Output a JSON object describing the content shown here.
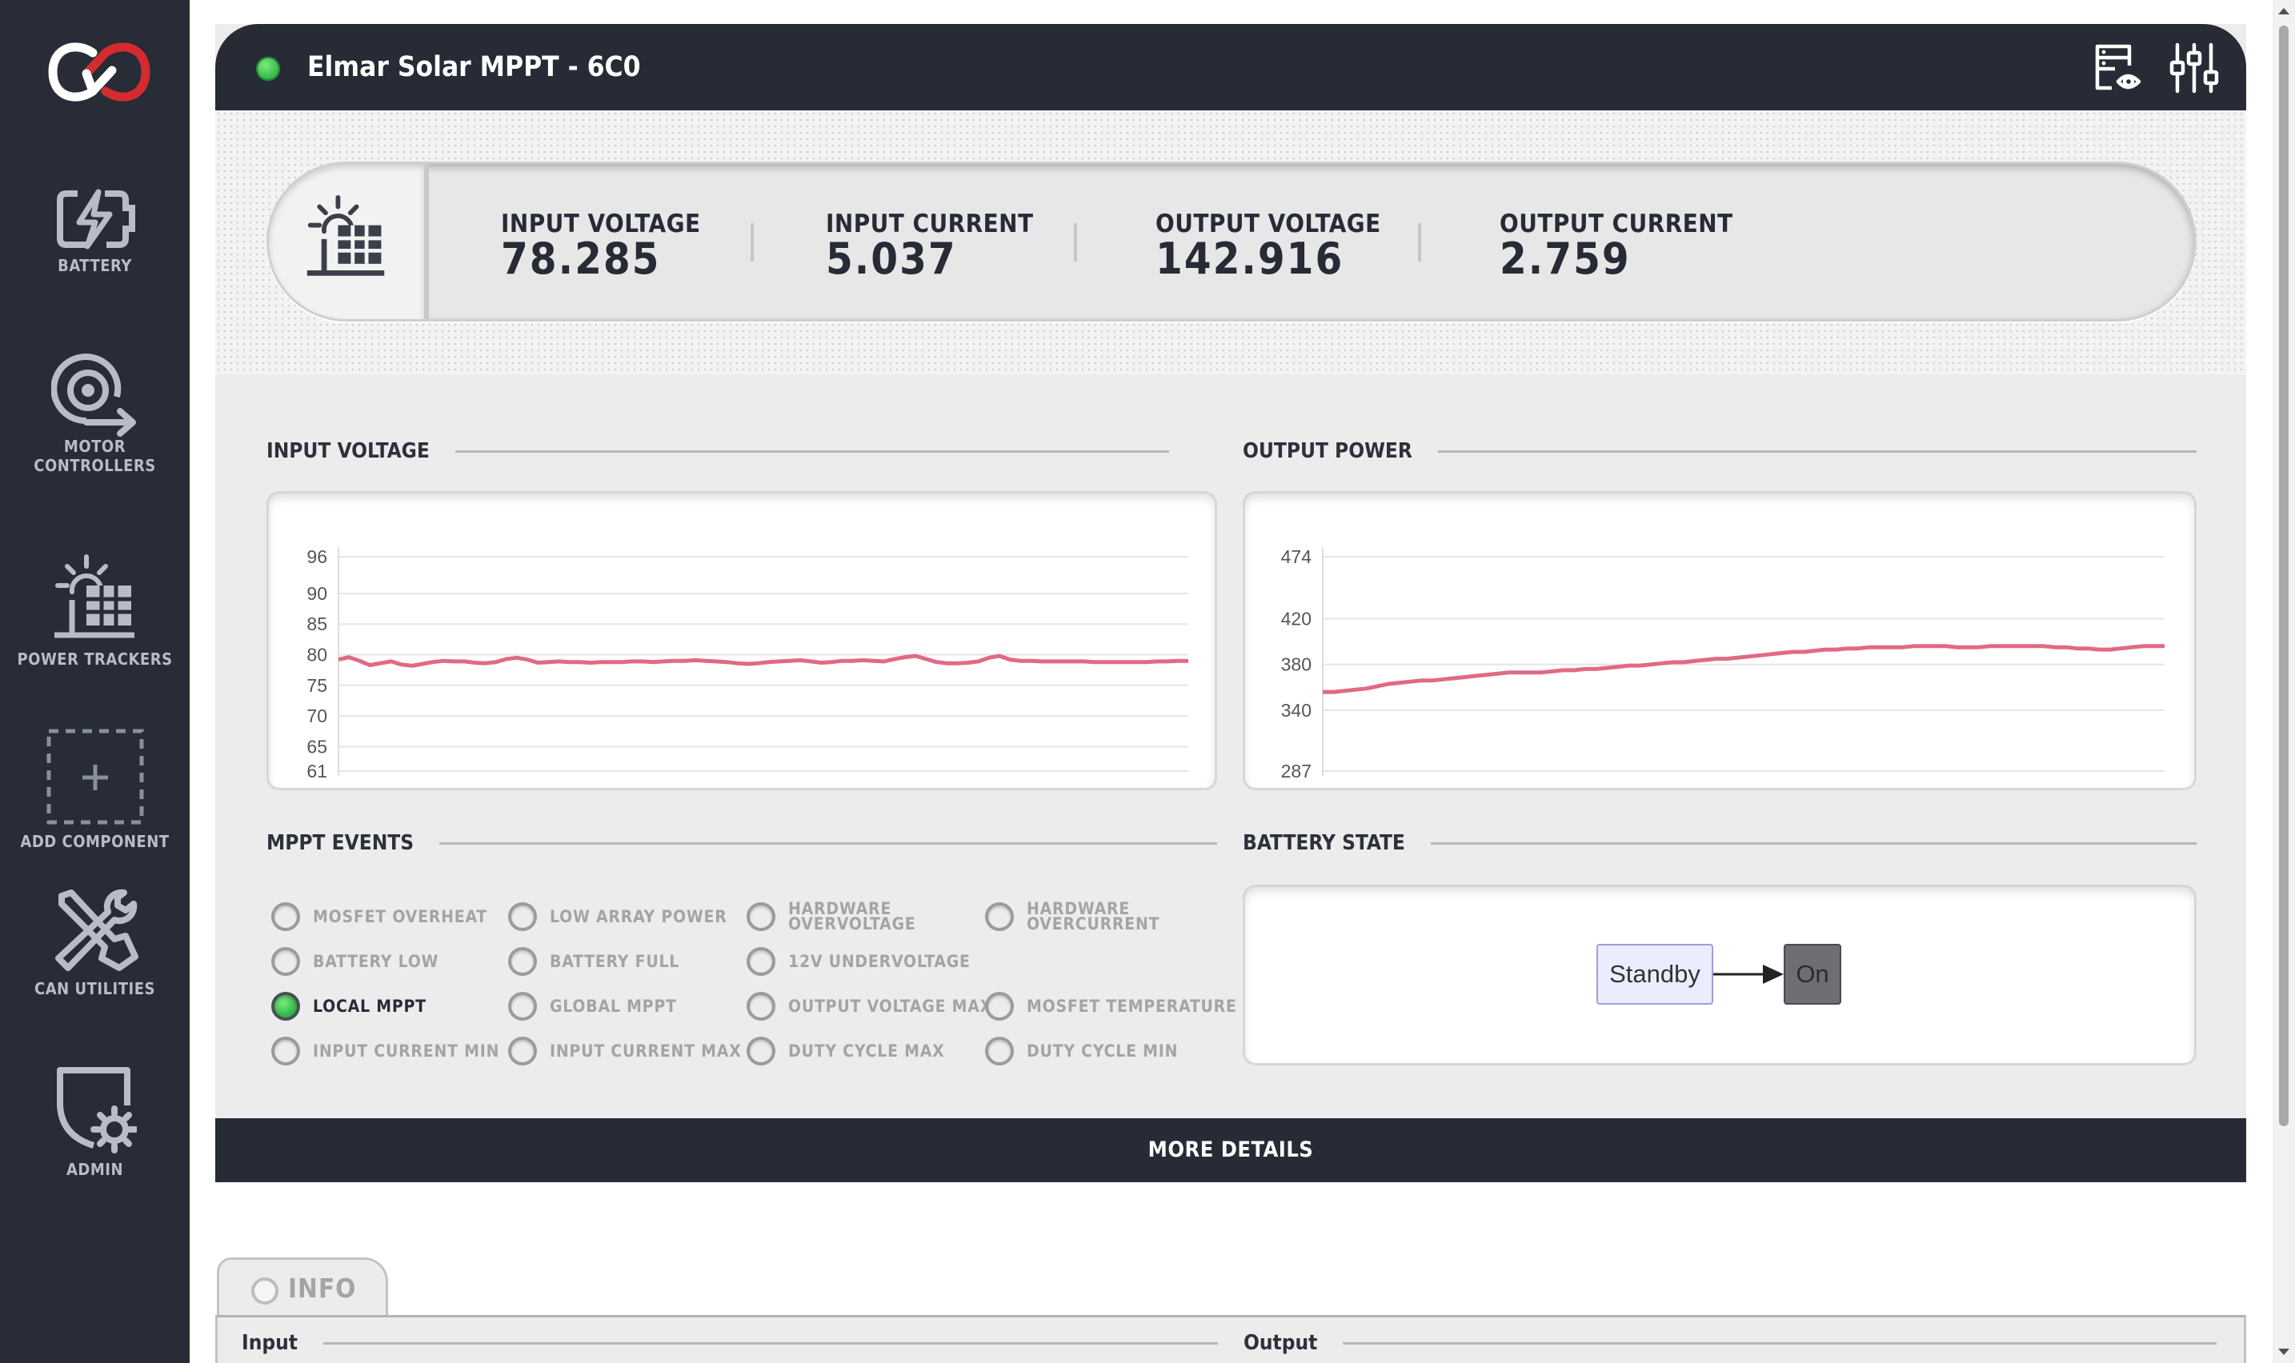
{
  "sidebar": {
    "logo": "elmar-logo-icon",
    "items": [
      {
        "label": "BATTERY",
        "icon": "battery-charge-icon"
      },
      {
        "label": "MOTOR\nCONTROLLERS",
        "icon": "motor-controller-icon"
      },
      {
        "label": "POWER TRACKERS",
        "icon": "solar-panel-icon"
      },
      {
        "label": "ADD COMPONENT",
        "icon": "add-component-icon"
      },
      {
        "label": "CAN UTILITIES",
        "icon": "tools-icon"
      },
      {
        "label": "ADMIN",
        "icon": "admin-gear-icon"
      }
    ]
  },
  "header": {
    "title": "Elmar Solar MPPT - 6C0",
    "status": "online",
    "status_color": "#2fb243",
    "icons": [
      "view-log-icon",
      "adjust-sliders-icon"
    ]
  },
  "readouts": [
    {
      "label": "INPUT VOLTAGE",
      "value": "78.285"
    },
    {
      "label": "INPUT CURRENT",
      "value": "5.037"
    },
    {
      "label": "OUTPUT VOLTAGE",
      "value": "142.916"
    },
    {
      "label": "OUTPUT CURRENT",
      "value": "2.759"
    }
  ],
  "charts_section": {
    "input_voltage_title": "INPUT VOLTAGE",
    "output_power_title": "OUTPUT POWER"
  },
  "chart_data": [
    {
      "type": "line",
      "title": "INPUT VOLTAGE",
      "yticks": [
        96,
        90,
        85,
        80,
        75,
        70,
        65,
        61
      ],
      "ylim": [
        61,
        96
      ],
      "grid": true,
      "line_color": "#e06a85",
      "series": [
        {
          "values": [
            79.2,
            79.6,
            79.0,
            78.3,
            78.6,
            78.9,
            78.4,
            78.2,
            78.5,
            78.8,
            79.0,
            78.9,
            78.9,
            78.7,
            78.6,
            78.8,
            79.3,
            79.5,
            79.2,
            78.7,
            78.8,
            78.9,
            78.8,
            78.8,
            78.7,
            78.8,
            78.8,
            78.8,
            78.9,
            78.9,
            78.8,
            78.9,
            79.0,
            79.0,
            79.1,
            79.0,
            78.9,
            78.8,
            78.6,
            78.5,
            78.6,
            78.8,
            78.9,
            79.0,
            79.1,
            78.9,
            78.7,
            78.8,
            79.0,
            79.0,
            79.1,
            79.0,
            78.9,
            79.3,
            79.6,
            79.8,
            79.3,
            78.8,
            78.6,
            78.6,
            78.7,
            78.9,
            79.5,
            79.8,
            79.2,
            79.0,
            79.0,
            78.9,
            78.9,
            78.9,
            78.9,
            78.9,
            78.8,
            78.8,
            78.8,
            78.8,
            78.8,
            78.8,
            78.9,
            78.9,
            79.0,
            79.0
          ]
        }
      ]
    },
    {
      "type": "line",
      "title": "OUTPUT POWER",
      "yticks": [
        474,
        420,
        380,
        340,
        287
      ],
      "ylim": [
        287,
        474
      ],
      "grid": true,
      "line_color": "#e06a85",
      "series": [
        {
          "values": [
            356,
            356,
            357,
            358,
            359,
            361,
            363,
            364,
            365,
            366,
            366,
            367,
            368,
            369,
            370,
            371,
            372,
            373,
            373,
            373,
            373,
            374,
            375,
            375,
            376,
            376,
            377,
            378,
            379,
            379,
            380,
            381,
            382,
            382,
            383,
            384,
            385,
            385,
            386,
            387,
            388,
            389,
            390,
            391,
            391,
            392,
            393,
            393,
            394,
            394,
            395,
            395,
            395,
            395,
            396,
            396,
            396,
            396,
            395,
            395,
            395,
            396,
            396,
            396,
            396,
            396,
            396,
            395,
            395,
            394,
            394,
            393,
            393,
            394,
            395,
            396,
            396,
            396
          ]
        }
      ]
    }
  ],
  "events": {
    "title": "MPPT EVENTS",
    "items": [
      {
        "label": "MOSFET OVERHEAT",
        "active": false
      },
      {
        "label": "LOW ARRAY POWER",
        "active": false
      },
      {
        "label": "HARDWARE\nOVERVOLTAGE",
        "active": false
      },
      {
        "label": "HARDWARE\nOVERCURRENT",
        "active": false
      },
      {
        "label": "BATTERY LOW",
        "active": false
      },
      {
        "label": "BATTERY FULL",
        "active": false
      },
      {
        "label": "12V UNDERVOLTAGE",
        "active": false
      },
      {
        "label": "LOCAL MPPT",
        "active": true
      },
      {
        "label": "GLOBAL MPPT",
        "active": false
      },
      {
        "label": "OUTPUT VOLTAGE MAX",
        "active": false
      },
      {
        "label": "MOSFET TEMPERATURE",
        "active": false
      },
      {
        "label": "INPUT CURRENT MIN",
        "active": false
      },
      {
        "label": "INPUT CURRENT MAX",
        "active": false
      },
      {
        "label": "DUTY CYCLE MAX",
        "active": false
      },
      {
        "label": "DUTY CYCLE MIN",
        "active": false
      }
    ]
  },
  "battery_state": {
    "title": "BATTERY STATE",
    "states": [
      "Standby",
      "On"
    ],
    "current_state": "On"
  },
  "more_details": {
    "label": "MORE DETAILS",
    "icon": "chevron-up-icon"
  },
  "info_tab": {
    "label": "INFO"
  },
  "info_sections": {
    "input_title": "Input",
    "output_title": "Output"
  }
}
